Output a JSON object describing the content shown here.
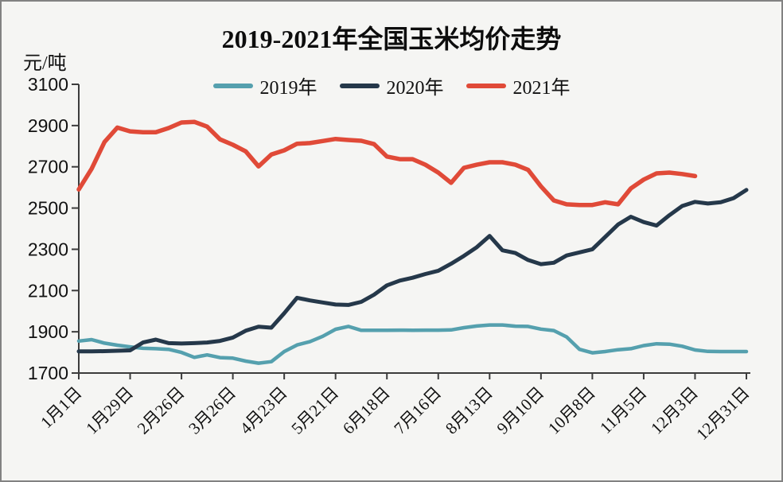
{
  "page": {
    "background": "#f5f5f3",
    "border_color": "#828282"
  },
  "title": "2019-2021年全国玉米均价走势",
  "chart_data": {
    "type": "line",
    "title": "2019-2021年全国玉米均价走势",
    "ylabel": "元/吨",
    "ylim": [
      1700,
      3100
    ],
    "yticks": [
      1700,
      1900,
      2100,
      2300,
      2500,
      2700,
      2900,
      3100
    ],
    "grid": false,
    "legend_position": "top-center",
    "x_unit": "week",
    "categories": [
      "1月1日",
      "1月29日",
      "2月26日",
      "3月26日",
      "4月23日",
      "5月21日",
      "6月18日",
      "7月16日",
      "8月13日",
      "9月10日",
      "10月8日",
      "11月5日",
      "12月3日",
      "12月31日"
    ],
    "category_week_indices": [
      0,
      4,
      8,
      12,
      16,
      20,
      24,
      28,
      32,
      36,
      40,
      44,
      48,
      52
    ],
    "series": [
      {
        "name": "2019年",
        "color": "#55a0ae",
        "values": [
          1855,
          1862,
          1845,
          1835,
          1827,
          1820,
          1818,
          1815,
          1800,
          1776,
          1788,
          1775,
          1772,
          1758,
          1748,
          1755,
          1804,
          1836,
          1852,
          1878,
          1912,
          1926,
          1907,
          1907,
          1907,
          1908,
          1907,
          1908,
          1908,
          1909,
          1920,
          1928,
          1933,
          1933,
          1927,
          1926,
          1913,
          1906,
          1875,
          1815,
          1798,
          1804,
          1813,
          1818,
          1833,
          1842,
          1840,
          1830,
          1812,
          1805,
          1804,
          1804,
          1804
        ]
      },
      {
        "name": "2020年",
        "color": "#25384a",
        "values": [
          1805,
          1805,
          1806,
          1808,
          1810,
          1848,
          1862,
          1845,
          1843,
          1845,
          1848,
          1856,
          1872,
          1905,
          1925,
          1920,
          1990,
          2065,
          2052,
          2042,
          2032,
          2030,
          2045,
          2080,
          2125,
          2148,
          2162,
          2180,
          2196,
          2230,
          2268,
          2310,
          2365,
          2295,
          2282,
          2248,
          2228,
          2235,
          2270,
          2285,
          2300,
          2360,
          2420,
          2458,
          2432,
          2415,
          2465,
          2510,
          2530,
          2522,
          2528,
          2548,
          2588
        ]
      },
      {
        "name": "2021年",
        "color": "#e04a38",
        "values": [
          2590,
          2690,
          2820,
          2890,
          2872,
          2868,
          2868,
          2888,
          2915,
          2918,
          2895,
          2833,
          2807,
          2775,
          2702,
          2760,
          2780,
          2812,
          2815,
          2825,
          2835,
          2830,
          2826,
          2810,
          2750,
          2737,
          2737,
          2710,
          2672,
          2622,
          2695,
          2710,
          2722,
          2722,
          2710,
          2685,
          2605,
          2537,
          2518,
          2515,
          2515,
          2528,
          2518,
          2595,
          2638,
          2668,
          2672,
          2665,
          2655
        ]
      }
    ]
  }
}
